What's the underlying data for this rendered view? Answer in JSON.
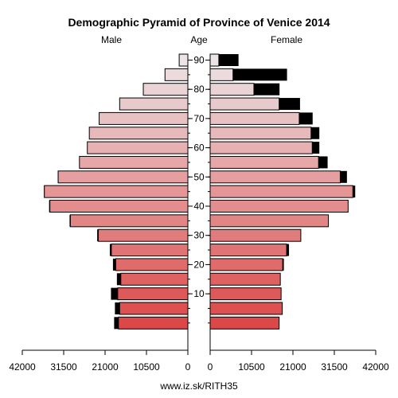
{
  "chart_data": {
    "type": "bar",
    "title": "Demographic Pyramid of Province of Venice 2014",
    "left_label": "Male",
    "center_label": "Age",
    "right_label": "Female",
    "footer": "www.iz.sk/RITH35",
    "age_ticks": [
      "10",
      "20",
      "30",
      "40",
      "50",
      "60",
      "70",
      "80",
      "90"
    ],
    "x_ticks_left": [
      "42000",
      "31500",
      "21000",
      "10500",
      "0"
    ],
    "x_ticks_right": [
      "0",
      "10500",
      "21000",
      "31500",
      "42000"
    ],
    "xlim": [
      0,
      42000
    ],
    "age_groups": [
      "0-4",
      "5-9",
      "10-14",
      "15-19",
      "20-24",
      "25-29",
      "30-34",
      "35-39",
      "40-44",
      "45-49",
      "50-54",
      "55-59",
      "60-64",
      "65-69",
      "70-74",
      "75-79",
      "80-84",
      "85-89",
      "90+"
    ],
    "series": [
      {
        "name": "Male",
        "values": [
          18700,
          18500,
          19500,
          18000,
          19000,
          19800,
          23000,
          30000,
          35200,
          36500,
          33000,
          27500,
          25500,
          25000,
          22500,
          17300,
          11300,
          5800,
          2200
        ],
        "foreigners": [
          1100,
          1200,
          1700,
          1000,
          700,
          400,
          300,
          200,
          200,
          100,
          100,
          0,
          0,
          0,
          0,
          0,
          0,
          0,
          0
        ]
      },
      {
        "name": "Female",
        "values": [
          17500,
          18300,
          18000,
          17800,
          18700,
          20000,
          23000,
          30000,
          35000,
          36800,
          34700,
          29800,
          27700,
          27700,
          26000,
          22800,
          17600,
          19500,
          7200
        ],
        "foreigners": [
          0,
          0,
          0,
          0,
          300,
          600,
          0,
          0,
          0,
          600,
          1700,
          2300,
          1800,
          2100,
          3400,
          5300,
          6500,
          13700,
          5000
        ]
      }
    ],
    "colors": {
      "foreign_bar": "#000000",
      "axis": "#000000",
      "bar_stroke": "#000000",
      "young": "#dc4848",
      "old": "#ece4e6"
    }
  }
}
